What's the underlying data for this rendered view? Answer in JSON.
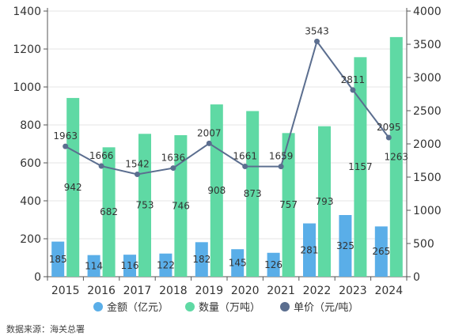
{
  "chart_data": {
    "type": "bar",
    "categories": [
      "2015",
      "2016",
      "2017",
      "2018",
      "2019",
      "2020",
      "2021",
      "2022",
      "2023",
      "2024"
    ],
    "series": [
      {
        "name": "金额（亿元）",
        "type": "bar",
        "axis": "left",
        "values": [
          185,
          114,
          116,
          122,
          182,
          145,
          126,
          281,
          325,
          265
        ],
        "color": "#5aaee8"
      },
      {
        "name": "数量（万吨）",
        "type": "bar",
        "axis": "left",
        "values": [
          942,
          682,
          753,
          746,
          908,
          873,
          757,
          793,
          1157,
          1263
        ],
        "color": "#5fd9a4"
      },
      {
        "name": "单价（元/吨）",
        "type": "line",
        "axis": "right",
        "values": [
          1963,
          1666,
          1542,
          1636,
          2007,
          1661,
          1659,
          3543,
          2811,
          2095
        ],
        "color": "#5b6e8f"
      }
    ],
    "y_left": {
      "min": 0,
      "max": 1400,
      "ticks": [
        "0",
        "200",
        "400",
        "600",
        "800",
        "1000",
        "1200",
        "1400"
      ]
    },
    "y_right": {
      "min": 0,
      "max": 4000,
      "ticks": [
        "0",
        "500",
        "1000",
        "1500",
        "2000",
        "2500",
        "3000",
        "3500",
        "4000"
      ]
    },
    "grid": true,
    "legend_position": "bottom"
  },
  "source": "数据来源：海关总署"
}
